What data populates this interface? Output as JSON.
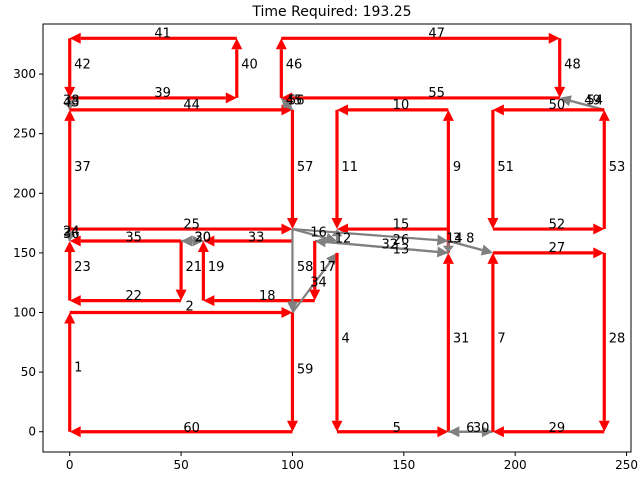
{
  "chart_data": {
    "type": "line",
    "title": "Time Required: 193.25",
    "xlabel": "",
    "ylabel": "",
    "xlim": [
      -12,
      252
    ],
    "ylim": [
      -17,
      342
    ],
    "xticks": [
      0,
      50,
      100,
      150,
      200,
      250
    ],
    "yticks": [
      0,
      50,
      100,
      150,
      200,
      250,
      300
    ],
    "grid": false,
    "legend": "none",
    "colors": {
      "red_path": "#ff0000",
      "gray_path": "#808080",
      "axes": "#000000"
    },
    "edges": [
      {
        "label": "1",
        "from": [
          0,
          0
        ],
        "to": [
          0,
          100
        ],
        "color": "red",
        "lx": 2,
        "ly": 54
      },
      {
        "label": "2",
        "from": [
          0,
          100
        ],
        "to": [
          100,
          100
        ],
        "color": "red",
        "lx": 52,
        "ly": 105
      },
      {
        "label": "59",
        "from": [
          100,
          100
        ],
        "to": [
          100,
          0
        ],
        "color": "red",
        "lx": 102,
        "ly": 52
      },
      {
        "label": "60",
        "from": [
          100,
          0
        ],
        "to": [
          0,
          0
        ],
        "color": "red",
        "lx": 51,
        "ly": 3
      },
      {
        "label": "22",
        "from": [
          50,
          110
        ],
        "to": [
          0,
          110
        ],
        "color": "red",
        "lx": 25,
        "ly": 114
      },
      {
        "label": "23",
        "from": [
          0,
          110
        ],
        "to": [
          0,
          160
        ],
        "color": "red",
        "lx": 2,
        "ly": 138
      },
      {
        "label": "35",
        "from": [
          50,
          160
        ],
        "to": [
          0,
          160
        ],
        "color": "red",
        "lx": 25,
        "ly": 163
      },
      {
        "label": "21",
        "from": [
          50,
          160
        ],
        "to": [
          50,
          110
        ],
        "color": "red",
        "lx": 52,
        "ly": 138
      },
      {
        "label": "24",
        "from": [
          0,
          160
        ],
        "to": [
          0,
          170
        ],
        "color": "gray",
        "lx": -3,
        "ly": 168
      },
      {
        "label": "36",
        "from": [
          0,
          170
        ],
        "to": [
          0,
          160
        ],
        "color": "gray",
        "lx": -3,
        "ly": 166
      },
      {
        "label": "37",
        "from": [
          0,
          170
        ],
        "to": [
          0,
          270
        ],
        "color": "red",
        "lx": 2,
        "ly": 222
      },
      {
        "label": "25",
        "from": [
          0,
          170
        ],
        "to": [
          100,
          170
        ],
        "color": "red",
        "lx": 51,
        "ly": 174
      },
      {
        "label": "38",
        "from": [
          0,
          270
        ],
        "to": [
          0,
          280
        ],
        "color": "gray",
        "lx": -3,
        "ly": 278
      },
      {
        "label": "43",
        "from": [
          0,
          280
        ],
        "to": [
          0,
          270
        ],
        "color": "gray",
        "lx": -3,
        "ly": 276
      },
      {
        "label": "44",
        "from": [
          0,
          270
        ],
        "to": [
          100,
          270
        ],
        "color": "red",
        "lx": 51,
        "ly": 274
      },
      {
        "label": "39",
        "from": [
          0,
          280
        ],
        "to": [
          75,
          280
        ],
        "color": "red",
        "lx": 38,
        "ly": 284
      },
      {
        "label": "40",
        "from": [
          75,
          280
        ],
        "to": [
          75,
          330
        ],
        "color": "red",
        "lx": 77,
        "ly": 308
      },
      {
        "label": "41",
        "from": [
          75,
          330
        ],
        "to": [
          0,
          330
        ],
        "color": "red",
        "lx": 38,
        "ly": 334
      },
      {
        "label": "42",
        "from": [
          0,
          330
        ],
        "to": [
          0,
          280
        ],
        "color": "red",
        "lx": 2,
        "ly": 308
      },
      {
        "label": "57",
        "from": [
          100,
          270
        ],
        "to": [
          100,
          170
        ],
        "color": "red",
        "lx": 102,
        "ly": 222
      },
      {
        "label": "45",
        "from": [
          95,
          280
        ],
        "to": [
          100,
          270
        ],
        "color": "gray",
        "lx": 97,
        "ly": 278
      },
      {
        "label": "46",
        "from": [
          95,
          280
        ],
        "to": [
          95,
          330
        ],
        "color": "red",
        "lx": 97,
        "ly": 308
      },
      {
        "label": "47",
        "from": [
          95,
          330
        ],
        "to": [
          220,
          330
        ],
        "color": "red",
        "lx": 161,
        "ly": 334
      },
      {
        "label": "48",
        "from": [
          220,
          330
        ],
        "to": [
          220,
          280
        ],
        "color": "red",
        "lx": 222,
        "ly": 308
      },
      {
        "label": "49",
        "from": [
          240,
          270
        ],
        "to": [
          220,
          280
        ],
        "color": "gray",
        "lx": 231,
        "ly": 278
      },
      {
        "label": "56",
        "from": [
          100,
          270
        ],
        "to": [
          95,
          280
        ],
        "color": "gray",
        "lx": 98,
        "ly": 278
      },
      {
        "label": "55",
        "from": [
          220,
          280
        ],
        "to": [
          95,
          280
        ],
        "color": "red",
        "lx": 161,
        "ly": 284
      },
      {
        "label": "54",
        "from": [
          240,
          270
        ],
        "to": [
          220,
          280
        ],
        "color": "gray",
        "lx": 232,
        "ly": 278
      },
      {
        "label": "53",
        "from": [
          240,
          170
        ],
        "to": [
          240,
          270
        ],
        "color": "red",
        "lx": 242,
        "ly": 222
      },
      {
        "label": "50",
        "from": [
          240,
          270
        ],
        "to": [
          190,
          270
        ],
        "color": "red",
        "lx": 215,
        "ly": 274
      },
      {
        "label": "51",
        "from": [
          190,
          270
        ],
        "to": [
          190,
          170
        ],
        "color": "red",
        "lx": 192,
        "ly": 222
      },
      {
        "label": "52",
        "from": [
          190,
          170
        ],
        "to": [
          240,
          170
        ],
        "color": "red",
        "lx": 215,
        "ly": 174
      },
      {
        "label": "10",
        "from": [
          170,
          270
        ],
        "to": [
          120,
          270
        ],
        "color": "red",
        "lx": 145,
        "ly": 274
      },
      {
        "label": "11",
        "from": [
          120,
          270
        ],
        "to": [
          120,
          170
        ],
        "color": "red",
        "lx": 122,
        "ly": 222
      },
      {
        "label": "9",
        "from": [
          170,
          150
        ],
        "to": [
          170,
          270
        ],
        "color": "red",
        "lx": 172,
        "ly": 222
      },
      {
        "label": "15",
        "from": [
          170,
          170
        ],
        "to": [
          120,
          170
        ],
        "color": "red",
        "lx": 145,
        "ly": 174
      },
      {
        "label": "16",
        "from": [
          100,
          170
        ],
        "to": [
          120,
          160
        ],
        "color": "gray",
        "lx": 108,
        "ly": 167
      },
      {
        "label": "12",
        "from": [
          120,
          160
        ],
        "to": [
          120,
          170
        ],
        "color": "gray",
        "lx": 119,
        "ly": 162
      },
      {
        "label": "32",
        "from": [
          170,
          150
        ],
        "to": [
          110,
          160
        ],
        "color": "gray",
        "lx": 140,
        "ly": 157
      },
      {
        "label": "26",
        "from": [
          100,
          170
        ],
        "to": [
          170,
          160
        ],
        "color": "gray",
        "lx": 145,
        "ly": 161
      },
      {
        "label": "13",
        "from": [
          110,
          160
        ],
        "to": [
          170,
          150
        ],
        "color": "gray",
        "lx": 145,
        "ly": 153
      },
      {
        "label": "14",
        "from": [
          170,
          160
        ],
        "to": [
          170,
          150
        ],
        "color": "gray",
        "lx": 169,
        "ly": 162
      },
      {
        "label": "3",
        "from": [
          170,
          160
        ],
        "to": [
          190,
          150
        ],
        "color": "gray",
        "lx": 172,
        "ly": 162
      },
      {
        "label": "8",
        "from": [
          170,
          160
        ],
        "to": [
          190,
          150
        ],
        "color": "gray",
        "lx": 178,
        "ly": 162
      },
      {
        "label": "33",
        "from": [
          100,
          160
        ],
        "to": [
          60,
          160
        ],
        "color": "red",
        "lx": 80,
        "ly": 163
      },
      {
        "label": "30",
        "from": [
          60,
          160
        ],
        "to": [
          50,
          160
        ],
        "color": "gray",
        "lx": 56,
        "ly": 163
      },
      {
        "label": "20",
        "from": [
          50,
          160
        ],
        "to": [
          60,
          160
        ],
        "color": "gray",
        "lx": 56,
        "ly": 163
      },
      {
        "label": "19",
        "from": [
          60,
          110
        ],
        "to": [
          60,
          160
        ],
        "color": "red",
        "lx": 62,
        "ly": 138
      },
      {
        "label": "18",
        "from": [
          110,
          110
        ],
        "to": [
          60,
          110
        ],
        "color": "red",
        "lx": 85,
        "ly": 114
      },
      {
        "label": "58",
        "from": [
          100,
          170
        ],
        "to": [
          100,
          100
        ],
        "color": "gray",
        "lx": 102,
        "ly": 138
      },
      {
        "label": "34",
        "from": [
          100,
          100
        ],
        "to": [
          120,
          150
        ],
        "color": "gray",
        "lx": 108,
        "ly": 125
      },
      {
        "label": "17",
        "from": [
          110,
          160
        ],
        "to": [
          110,
          110
        ],
        "color": "red",
        "lx": 112,
        "ly": 138
      },
      {
        "label": "4",
        "from": [
          120,
          150
        ],
        "to": [
          120,
          0
        ],
        "color": "red",
        "lx": 122,
        "ly": 78
      },
      {
        "label": "5",
        "from": [
          120,
          0
        ],
        "to": [
          170,
          0
        ],
        "color": "red",
        "lx": 145,
        "ly": 3
      },
      {
        "label": "31",
        "from": [
          170,
          0
        ],
        "to": [
          170,
          150
        ],
        "color": "red",
        "lx": 172,
        "ly": 78
      },
      {
        "label": "6",
        "from": [
          170,
          0
        ],
        "to": [
          190,
          0
        ],
        "color": "gray",
        "lx": 178,
        "ly": 3
      },
      {
        "label": "30",
        "from": [
          190,
          0
        ],
        "to": [
          170,
          0
        ],
        "color": "gray",
        "lx": 181,
        "ly": 3
      },
      {
        "label": "7",
        "from": [
          190,
          0
        ],
        "to": [
          190,
          150
        ],
        "color": "red",
        "lx": 192,
        "ly": 78
      },
      {
        "label": "27",
        "from": [
          190,
          150
        ],
        "to": [
          240,
          150
        ],
        "color": "red",
        "lx": 215,
        "ly": 154
      },
      {
        "label": "28",
        "from": [
          240,
          150
        ],
        "to": [
          240,
          0
        ],
        "color": "red",
        "lx": 242,
        "ly": 78
      },
      {
        "label": "29",
        "from": [
          240,
          0
        ],
        "to": [
          190,
          0
        ],
        "color": "red",
        "lx": 215,
        "ly": 3
      }
    ]
  }
}
